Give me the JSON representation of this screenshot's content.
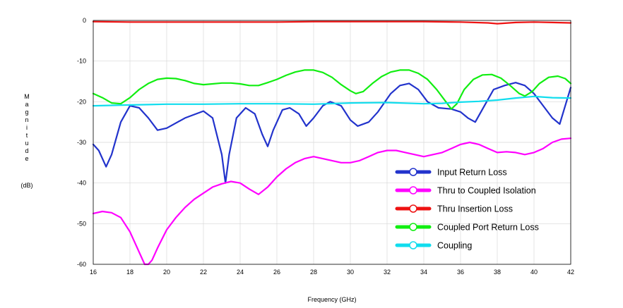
{
  "chart_data": {
    "type": "line",
    "xlabel": "Frequency (GHz)",
    "ylabel": "Magnitude",
    "yunit": "(dB)",
    "xlim": [
      16,
      42
    ],
    "ylim": [
      -60,
      0
    ],
    "xticks": [
      "16",
      "18",
      "20",
      "22",
      "24",
      "26",
      "28",
      "30",
      "32",
      "34",
      "36",
      "38",
      "40",
      "42"
    ],
    "yticks": [
      "0",
      "-10",
      "-20",
      "-30",
      "-40",
      "-50",
      "-60"
    ],
    "grid": true,
    "legend_position": "bottom-right",
    "series": [
      {
        "name": "Input Return Loss",
        "color": "#2233cc",
        "points": [
          [
            16,
            -30.5
          ],
          [
            16.3,
            -32
          ],
          [
            16.7,
            -36
          ],
          [
            17,
            -33
          ],
          [
            17.5,
            -25
          ],
          [
            18,
            -21
          ],
          [
            18.5,
            -21.5
          ],
          [
            19,
            -24
          ],
          [
            19.5,
            -27
          ],
          [
            20,
            -26.5
          ],
          [
            21,
            -24
          ],
          [
            22,
            -22.3
          ],
          [
            22.5,
            -24
          ],
          [
            23,
            -33
          ],
          [
            23.2,
            -40
          ],
          [
            23.4,
            -33
          ],
          [
            23.8,
            -24
          ],
          [
            24.3,
            -21.5
          ],
          [
            24.8,
            -23
          ],
          [
            25.2,
            -28
          ],
          [
            25.5,
            -31
          ],
          [
            25.8,
            -27
          ],
          [
            26.3,
            -22
          ],
          [
            26.7,
            -21.5
          ],
          [
            27.2,
            -23
          ],
          [
            27.6,
            -26
          ],
          [
            28,
            -24
          ],
          [
            28.5,
            -21
          ],
          [
            28.9,
            -20
          ],
          [
            29.5,
            -21
          ],
          [
            30,
            -24.5
          ],
          [
            30.4,
            -26
          ],
          [
            31,
            -25
          ],
          [
            31.5,
            -22.5
          ],
          [
            32.2,
            -18
          ],
          [
            32.7,
            -16
          ],
          [
            33.2,
            -15.5
          ],
          [
            33.7,
            -17
          ],
          [
            34.2,
            -20
          ],
          [
            34.8,
            -21.5
          ],
          [
            35.5,
            -21.8
          ],
          [
            36,
            -22.5
          ],
          [
            36.4,
            -24
          ],
          [
            36.8,
            -25
          ],
          [
            37.3,
            -21
          ],
          [
            37.8,
            -17
          ],
          [
            38.4,
            -16
          ],
          [
            39,
            -15.3
          ],
          [
            39.5,
            -16
          ],
          [
            40,
            -18
          ],
          [
            40.5,
            -21
          ],
          [
            41,
            -24
          ],
          [
            41.4,
            -25.5
          ],
          [
            41.7,
            -21
          ],
          [
            42,
            -16.5
          ]
        ]
      },
      {
        "name": "Thru to Coupled Isolation",
        "color": "#ff00ff",
        "points": [
          [
            16,
            -47.5
          ],
          [
            16.5,
            -47
          ],
          [
            17,
            -47.3
          ],
          [
            17.5,
            -48.5
          ],
          [
            18,
            -52
          ],
          [
            18.3,
            -55
          ],
          [
            18.6,
            -58
          ],
          [
            18.8,
            -60
          ],
          [
            19,
            -60
          ],
          [
            19.2,
            -59
          ],
          [
            19.5,
            -56
          ],
          [
            20,
            -51.5
          ],
          [
            20.5,
            -48.5
          ],
          [
            21,
            -46
          ],
          [
            21.5,
            -44
          ],
          [
            22,
            -42.5
          ],
          [
            22.5,
            -41
          ],
          [
            23,
            -40.2
          ],
          [
            23.5,
            -39.6
          ],
          [
            24,
            -40
          ],
          [
            24.5,
            -41.5
          ],
          [
            25,
            -42.8
          ],
          [
            25.5,
            -41
          ],
          [
            26,
            -38.5
          ],
          [
            26.5,
            -36.5
          ],
          [
            27,
            -35
          ],
          [
            27.5,
            -34
          ],
          [
            28,
            -33.5
          ],
          [
            28.5,
            -34
          ],
          [
            29,
            -34.5
          ],
          [
            29.5,
            -35
          ],
          [
            30,
            -35
          ],
          [
            30.5,
            -34.5
          ],
          [
            31,
            -33.5
          ],
          [
            31.5,
            -32.5
          ],
          [
            32,
            -32
          ],
          [
            32.5,
            -32
          ],
          [
            33,
            -32.5
          ],
          [
            33.5,
            -33
          ],
          [
            34,
            -33.5
          ],
          [
            34.5,
            -33
          ],
          [
            35,
            -32.5
          ],
          [
            35.5,
            -31.5
          ],
          [
            36,
            -30.5
          ],
          [
            36.5,
            -30
          ],
          [
            37,
            -30.5
          ],
          [
            37.5,
            -31.5
          ],
          [
            38,
            -32.5
          ],
          [
            38.5,
            -32.3
          ],
          [
            39,
            -32.5
          ],
          [
            39.5,
            -33
          ],
          [
            40,
            -32.5
          ],
          [
            40.5,
            -31.5
          ],
          [
            41,
            -30
          ],
          [
            41.5,
            -29.2
          ],
          [
            42,
            -29
          ]
        ]
      },
      {
        "name": "Thru Insertion Loss",
        "color": "#ee1111",
        "points": [
          [
            16,
            -0.3
          ],
          [
            18,
            -0.4
          ],
          [
            20,
            -0.4
          ],
          [
            22,
            -0.4
          ],
          [
            24,
            -0.4
          ],
          [
            26,
            -0.4
          ],
          [
            28,
            -0.3
          ],
          [
            30,
            -0.3
          ],
          [
            32,
            -0.3
          ],
          [
            34,
            -0.3
          ],
          [
            36,
            -0.4
          ],
          [
            37.5,
            -0.6
          ],
          [
            38,
            -0.8
          ],
          [
            39,
            -0.5
          ],
          [
            40,
            -0.4
          ],
          [
            41,
            -0.5
          ],
          [
            42,
            -0.6
          ]
        ]
      },
      {
        "name": "Coupled Port Return Loss",
        "color": "#11ee11",
        "points": [
          [
            16,
            -18
          ],
          [
            16.5,
            -19
          ],
          [
            17,
            -20.3
          ],
          [
            17.5,
            -20.5
          ],
          [
            18,
            -19
          ],
          [
            18.5,
            -17
          ],
          [
            19,
            -15.5
          ],
          [
            19.5,
            -14.5
          ],
          [
            20,
            -14.2
          ],
          [
            20.5,
            -14.3
          ],
          [
            21,
            -14.8
          ],
          [
            21.5,
            -15.5
          ],
          [
            22,
            -15.8
          ],
          [
            22.5,
            -15.6
          ],
          [
            23,
            -15.4
          ],
          [
            23.5,
            -15.4
          ],
          [
            24,
            -15.6
          ],
          [
            24.5,
            -16
          ],
          [
            25,
            -16
          ],
          [
            25.5,
            -15.3
          ],
          [
            26,
            -14.5
          ],
          [
            26.5,
            -13.5
          ],
          [
            27,
            -12.7
          ],
          [
            27.5,
            -12.2
          ],
          [
            28,
            -12.2
          ],
          [
            28.5,
            -12.8
          ],
          [
            29,
            -14
          ],
          [
            29.5,
            -15.8
          ],
          [
            30,
            -17.3
          ],
          [
            30.3,
            -18
          ],
          [
            30.7,
            -17.5
          ],
          [
            31.2,
            -15.5
          ],
          [
            31.7,
            -13.8
          ],
          [
            32.2,
            -12.7
          ],
          [
            32.7,
            -12.2
          ],
          [
            33.2,
            -12.2
          ],
          [
            33.7,
            -13
          ],
          [
            34.2,
            -14.5
          ],
          [
            34.7,
            -17
          ],
          [
            35.2,
            -20
          ],
          [
            35.5,
            -21.8
          ],
          [
            35.8,
            -20.5
          ],
          [
            36.2,
            -17
          ],
          [
            36.7,
            -14.5
          ],
          [
            37.2,
            -13.4
          ],
          [
            37.7,
            -13.3
          ],
          [
            38.2,
            -14.2
          ],
          [
            38.7,
            -16
          ],
          [
            39.2,
            -18
          ],
          [
            39.5,
            -18.6
          ],
          [
            39.9,
            -17.5
          ],
          [
            40.3,
            -15.5
          ],
          [
            40.8,
            -14
          ],
          [
            41.3,
            -13.7
          ],
          [
            41.7,
            -14.3
          ],
          [
            42,
            -15.5
          ]
        ]
      },
      {
        "name": "Coupling",
        "color": "#11ddee",
        "points": [
          [
            16,
            -21
          ],
          [
            17,
            -20.9
          ],
          [
            18,
            -20.8
          ],
          [
            19,
            -20.7
          ],
          [
            20,
            -20.6
          ],
          [
            22,
            -20.6
          ],
          [
            24,
            -20.5
          ],
          [
            26,
            -20.5
          ],
          [
            28,
            -20.6
          ],
          [
            30,
            -20.3
          ],
          [
            32,
            -20.2
          ],
          [
            34,
            -20.5
          ],
          [
            35,
            -20.4
          ],
          [
            36,
            -20.1
          ],
          [
            37,
            -19.9
          ],
          [
            38,
            -19.6
          ],
          [
            39,
            -19.1
          ],
          [
            40,
            -18.7
          ],
          [
            41,
            -19
          ],
          [
            42,
            -19.1
          ]
        ]
      }
    ]
  }
}
